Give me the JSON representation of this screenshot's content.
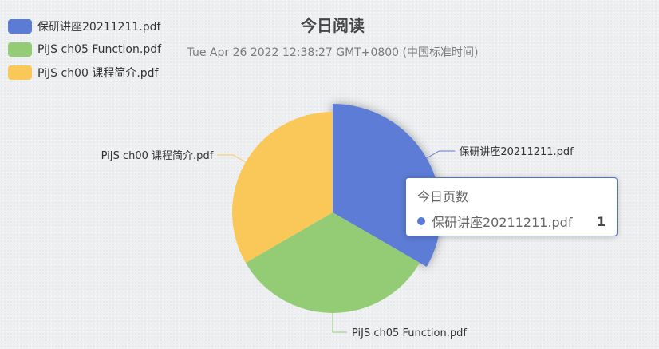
{
  "chart_data": {
    "type": "pie",
    "title": "今日阅读",
    "subtitle": "Tue Apr 26 2022 12:38:27 GMT+0800 (中国标准时间)",
    "series_name": "今日页数",
    "slices": [
      {
        "name": "保研讲座20211211.pdf",
        "value": 1,
        "color": "#5b7bd5"
      },
      {
        "name": "PiJS ch05 Function.pdf",
        "value": 1,
        "color": "#93cc75"
      },
      {
        "name": "PiJS ch00 课程简介.pdf",
        "value": 1,
        "color": "#fac858"
      }
    ],
    "legend_position": "top-left",
    "highlighted_slice": 0
  },
  "tooltip": {
    "title": "今日页数",
    "name": "保研讲座20211211.pdf",
    "value": "1",
    "color": "#5b7bd5"
  }
}
